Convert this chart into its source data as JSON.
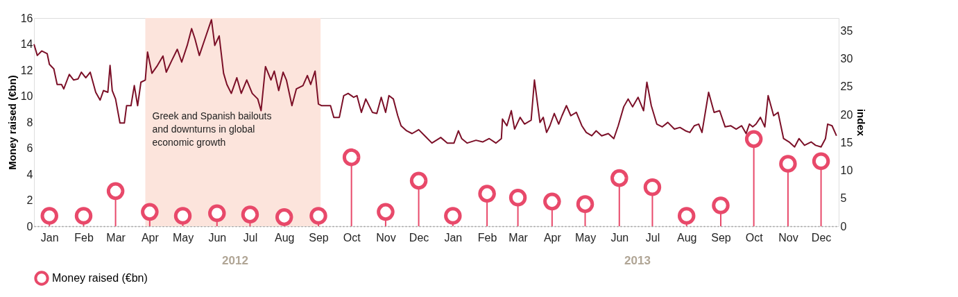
{
  "chart_data": {
    "type": "lollipop",
    "ylabel": "Money raised (€bn)",
    "y2label": "index",
    "xlim": [
      "2012-01-01",
      "2013-12-31"
    ],
    "xticks": [
      {
        "value": "2012-01-15",
        "label": "Jan"
      },
      {
        "value": "2012-02-15",
        "label": "Feb"
      },
      {
        "value": "2012-03-15",
        "label": "Mar"
      },
      {
        "value": "2012-04-15",
        "label": "Apr"
      },
      {
        "value": "2012-05-15",
        "label": "May"
      },
      {
        "value": "2012-06-15",
        "label": "Jun"
      },
      {
        "value": "2012-07-15",
        "label": "Jul"
      },
      {
        "value": "2012-08-15",
        "label": "Aug"
      },
      {
        "value": "2012-09-15",
        "label": "Sep"
      },
      {
        "value": "2012-10-15",
        "label": "Oct"
      },
      {
        "value": "2012-11-15",
        "label": "Nov"
      },
      {
        "value": "2012-12-15",
        "label": "Dec"
      },
      {
        "value": "2013-01-15",
        "label": "Jan"
      },
      {
        "value": "2013-02-15",
        "label": "Feb"
      },
      {
        "value": "2013-03-15",
        "label": "Mar"
      },
      {
        "value": "2013-04-15",
        "label": "Apr"
      },
      {
        "value": "2013-05-15",
        "label": "May"
      },
      {
        "value": "2013-06-15",
        "label": "Jun"
      },
      {
        "value": "2013-07-15",
        "label": "Jul"
      },
      {
        "value": "2013-08-15",
        "label": "Aug"
      },
      {
        "value": "2013-09-15",
        "label": "Sep"
      },
      {
        "value": "2013-10-15",
        "label": "Oct"
      },
      {
        "value": "2013-11-15",
        "label": "Nov"
      },
      {
        "value": "2013-12-15",
        "label": "Dec"
      }
    ],
    "ylim": [
      0,
      16
    ],
    "yticks": [
      0,
      2,
      4,
      6,
      8,
      10,
      12,
      14,
      16
    ],
    "y2lim": [
      0,
      37.3
    ],
    "y2ticks": [
      0,
      5,
      10,
      15,
      20,
      25,
      30,
      35
    ],
    "grid": false,
    "legend": "bottom",
    "bands": [
      {
        "axis": "x",
        "from": "2012-04-11",
        "to": "2012-09-17",
        "label": "Greek and Spanish bailouts and downturns in global economic growth",
        "color": "#fce4dc"
      }
    ],
    "annotations": [
      "2012",
      "2013"
    ],
    "series": [
      {
        "name": "Money raised (€bn)",
        "color": "#e8496a",
        "marker": "circle",
        "x": [
          "2012-01-15",
          "2012-02-15",
          "2012-03-15",
          "2012-04-15",
          "2012-05-15",
          "2012-06-15",
          "2012-07-15",
          "2012-08-15",
          "2012-09-15",
          "2012-10-15",
          "2012-11-15",
          "2012-12-15",
          "2013-01-15",
          "2013-02-15",
          "2013-03-15",
          "2013-04-15",
          "2013-05-15",
          "2013-06-15",
          "2013-07-15",
          "2013-08-15",
          "2013-09-15",
          "2013-10-15",
          "2013-11-15",
          "2013-12-15"
        ],
        "values": [
          0.8,
          0.8,
          2.7,
          1.1,
          0.8,
          1.0,
          0.9,
          0.7,
          0.8,
          5.3,
          1.1,
          3.5,
          0.8,
          2.5,
          2.2,
          1.9,
          1.7,
          3.7,
          3.0,
          0.8,
          1.6,
          6.7,
          4.8,
          5.0
        ]
      },
      {
        "type": "line",
        "axis": "y2",
        "color": "#7b0f27",
        "line_style": "solid",
        "x": [
          "2012-01-01",
          "2012-01-04",
          "2012-01-08",
          "2012-01-13",
          "2012-01-15",
          "2012-01-19",
          "2012-01-22",
          "2012-01-26",
          "2012-01-28",
          "2012-02-02",
          "2012-02-06",
          "2012-02-10",
          "2012-02-13",
          "2012-02-17",
          "2012-02-21",
          "2012-02-26",
          "2012-03-01",
          "2012-03-04",
          "2012-03-08",
          "2012-03-10",
          "2012-03-12",
          "2012-03-15",
          "2012-03-19",
          "2012-03-23",
          "2012-03-25",
          "2012-03-29",
          "2012-04-01",
          "2012-04-04",
          "2012-04-07",
          "2012-04-11",
          "2012-04-13",
          "2012-04-17",
          "2012-04-22",
          "2012-04-27",
          "2012-04-30",
          "2012-05-05",
          "2012-05-10",
          "2012-05-14",
          "2012-05-19",
          "2012-05-23",
          "2012-05-26",
          "2012-05-30",
          "2012-06-05",
          "2012-06-10",
          "2012-06-13",
          "2012-06-17",
          "2012-06-21",
          "2012-06-24",
          "2012-06-28",
          "2012-07-03",
          "2012-07-07",
          "2012-07-12",
          "2012-07-17",
          "2012-07-22",
          "2012-07-25",
          "2012-07-29",
          "2012-08-03",
          "2012-08-06",
          "2012-08-10",
          "2012-08-14",
          "2012-08-17",
          "2012-08-22",
          "2012-08-26",
          "2012-09-01",
          "2012-09-05",
          "2012-09-08",
          "2012-09-12",
          "2012-09-15",
          "2012-09-18",
          "2012-09-26",
          "2012-09-29",
          "2012-10-04",
          "2012-10-08",
          "2012-10-12",
          "2012-10-17",
          "2012-10-20",
          "2012-10-24",
          "2012-10-28",
          "2012-11-03",
          "2012-11-07",
          "2012-11-11",
          "2012-11-15",
          "2012-11-18",
          "2012-11-22",
          "2012-11-26",
          "2012-11-29",
          "2012-12-04",
          "2012-12-09",
          "2012-12-15",
          "2012-12-21",
          "2012-12-27",
          "2013-01-04",
          "2013-01-10",
          "2013-01-16",
          "2013-01-20",
          "2013-01-23",
          "2013-01-28",
          "2013-02-05",
          "2013-02-11",
          "2013-02-17",
          "2013-02-23",
          "2013-02-28",
          "2013-03-01",
          "2013-03-05",
          "2013-03-09",
          "2013-03-12",
          "2013-03-17",
          "2013-03-21",
          "2013-03-27",
          "2013-03-30",
          "2013-04-04",
          "2013-04-07",
          "2013-04-10",
          "2013-04-13",
          "2013-04-17",
          "2013-04-21",
          "2013-04-24",
          "2013-04-28",
          "2013-05-02",
          "2013-05-07",
          "2013-05-12",
          "2013-05-16",
          "2013-05-21",
          "2013-05-25",
          "2013-05-30",
          "2013-06-05",
          "2013-06-10",
          "2013-06-14",
          "2013-06-19",
          "2013-06-23",
          "2013-06-27",
          "2013-07-02",
          "2013-07-07",
          "2013-07-10",
          "2013-07-14",
          "2013-07-19",
          "2013-07-24",
          "2013-07-29",
          "2013-08-04",
          "2013-08-09",
          "2013-08-14",
          "2013-08-18",
          "2013-08-22",
          "2013-08-26",
          "2013-08-29",
          "2013-09-04",
          "2013-09-09",
          "2013-09-14",
          "2013-09-19",
          "2013-09-24",
          "2013-09-29",
          "2013-10-04",
          "2013-10-08",
          "2013-10-11",
          "2013-10-14",
          "2013-10-17",
          "2013-10-21",
          "2013-10-25",
          "2013-10-28",
          "2013-11-02",
          "2013-11-06",
          "2013-11-11",
          "2013-11-16",
          "2013-11-21",
          "2013-11-25",
          "2013-11-30",
          "2013-12-06",
          "2013-12-10",
          "2013-12-15",
          "2013-12-19",
          "2013-12-21",
          "2013-12-25",
          "2013-12-29"
        ],
        "values": [
          32.6,
          30.6,
          31.4,
          30.9,
          29.0,
          28.2,
          25.4,
          25.4,
          24.6,
          27.2,
          26.2,
          26.4,
          27.6,
          26.6,
          27.6,
          24.0,
          22.6,
          24.3,
          24.0,
          28.8,
          24.3,
          22.8,
          18.5,
          18.5,
          21.6,
          21.6,
          25.2,
          21.6,
          25.8,
          26.2,
          31.2,
          27.4,
          28.8,
          30.5,
          27.6,
          29.7,
          31.7,
          29.4,
          32.4,
          35.4,
          33.6,
          30.6,
          34.1,
          37.0,
          32.4,
          34.1,
          27.4,
          25.4,
          23.8,
          26.6,
          23.8,
          26.2,
          23.8,
          22.8,
          20.7,
          28.6,
          26.2,
          27.8,
          24.3,
          27.6,
          26.2,
          21.6,
          24.6,
          25.2,
          27.0,
          25.4,
          27.8,
          21.9,
          21.6,
          21.6,
          19.5,
          19.5,
          23.4,
          23.8,
          23.1,
          23.4,
          20.4,
          22.8,
          20.4,
          20.2,
          23.1,
          20.4,
          23.4,
          22.8,
          19.8,
          18.0,
          17.1,
          16.6,
          17.3,
          16.1,
          14.9,
          15.9,
          14.9,
          14.9,
          17.1,
          15.7,
          14.9,
          15.4,
          15.1,
          15.7,
          14.9,
          15.7,
          19.2,
          18.0,
          20.7,
          17.4,
          19.5,
          18.3,
          19.0,
          26.2,
          18.6,
          19.5,
          16.8,
          18.0,
          20.2,
          18.3,
          19.8,
          21.6,
          19.8,
          20.4,
          18.0,
          16.8,
          16.2,
          17.1,
          16.2,
          16.6,
          15.7,
          18.0,
          21.4,
          22.8,
          21.4,
          23.1,
          20.7,
          25.8,
          21.6,
          18.3,
          17.8,
          18.6,
          17.4,
          17.7,
          17.1,
          16.8,
          18.0,
          18.3,
          16.8,
          24.0,
          20.4,
          20.7,
          17.8,
          18.0,
          17.4,
          18.0,
          16.6,
          18.3,
          17.8,
          18.3,
          19.5,
          17.8,
          23.4,
          19.8,
          20.4,
          15.7,
          15.1,
          14.2,
          15.7,
          14.5,
          15.1,
          14.5,
          14.2,
          15.7,
          18.3,
          18.0,
          16.2
        ]
      }
    ]
  }
}
